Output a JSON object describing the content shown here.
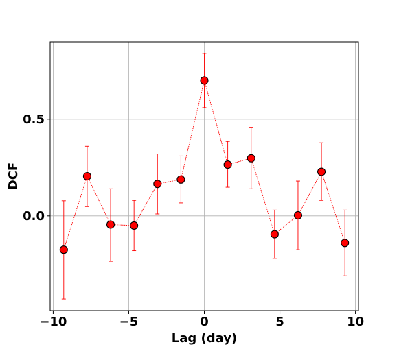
{
  "chart_data": {
    "type": "scatter",
    "title": "",
    "xlabel": "Lag (day)",
    "ylabel": "DCF",
    "xlim": [
      -10.2,
      10.2
    ],
    "ylim": [
      -0.49,
      0.9
    ],
    "x_ticks": [
      -10,
      -5,
      0,
      5,
      10
    ],
    "x_tick_labels": [
      "−10",
      "−5",
      "0",
      "5",
      "10"
    ],
    "y_ticks": [
      0.0,
      0.5
    ],
    "y_tick_labels": [
      "0.0",
      "0.5"
    ],
    "grid": true,
    "legend": "none",
    "colors": {
      "line": "#ff0000",
      "marker_fill": "#ff0000",
      "marker_edge": "#000000",
      "errorbar": "#ff0000",
      "grid": "#b0b0b0"
    },
    "series": [
      {
        "x": [
          -9.3,
          -7.75,
          -6.2,
          -4.65,
          -3.1,
          -1.55,
          0.0,
          1.55,
          3.1,
          4.65,
          6.2,
          7.75,
          9.3
        ],
        "y": [
          -0.175,
          0.205,
          -0.045,
          -0.05,
          0.165,
          0.188,
          0.7,
          0.265,
          0.298,
          -0.095,
          0.003,
          0.228,
          -0.14
        ],
        "yerr_low": [
          -0.43,
          0.048,
          -0.235,
          -0.18,
          0.01,
          0.067,
          0.56,
          0.148,
          0.14,
          -0.22,
          -0.175,
          0.08,
          -0.31
        ],
        "yerr_high": [
          0.078,
          0.36,
          0.14,
          0.08,
          0.32,
          0.31,
          0.84,
          0.385,
          0.458,
          0.03,
          0.18,
          0.378,
          0.03
        ]
      }
    ]
  }
}
